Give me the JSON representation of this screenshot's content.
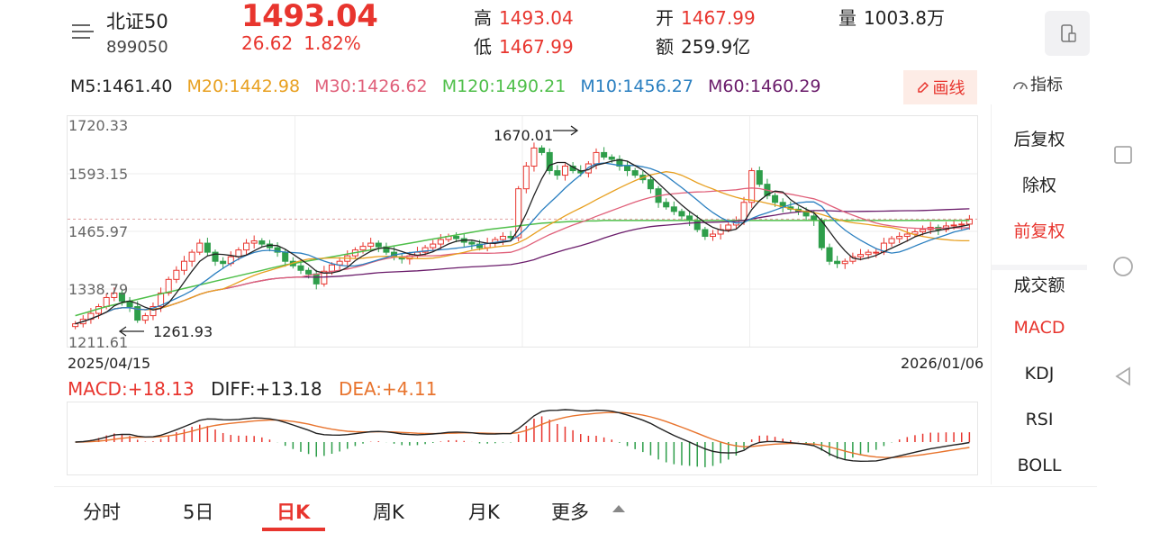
{
  "header": {
    "name": "北证50",
    "code": "899050",
    "price": "1493.04",
    "change": "26.62",
    "change_pct": "1.82%",
    "high_label": "高",
    "high": "1493.04",
    "low_label": "低",
    "low": "1467.99",
    "open_label": "开",
    "open": "1467.99",
    "amount_label": "额",
    "amount": "259.9亿",
    "volume_label": "量",
    "volume": "1003.8万"
  },
  "ma": [
    {
      "label": "M5:1461.40",
      "color": "#222222"
    },
    {
      "label": "M20:1442.98",
      "color": "#e8a020"
    },
    {
      "label": "M30:1426.62",
      "color": "#e0607a"
    },
    {
      "label": "M120:1490.21",
      "color": "#4fbf4a"
    },
    {
      "label": "M10:1456.27",
      "color": "#2a7fc0"
    },
    {
      "label": "M60:1460.29",
      "color": "#6a1b6a"
    }
  ],
  "draw_button": "画线",
  "indicator_button": "指标",
  "side_menu": [
    {
      "label": "后复权",
      "active": false
    },
    {
      "label": "除权",
      "active": false
    },
    {
      "label": "前复权",
      "active": true
    },
    {
      "label": "成交额",
      "active": false
    },
    {
      "label": "MACD",
      "active": true
    },
    {
      "label": "KDJ",
      "active": false
    },
    {
      "label": "RSI",
      "active": false
    },
    {
      "label": "BOLL",
      "active": false
    }
  ],
  "chart_data": [
    {
      "type": "candlestick",
      "y_ticks": [
        "1720.33",
        "1593.15",
        "1465.97",
        "1338.79",
        "1211.61"
      ],
      "ylim": [
        1211.61,
        1720.33
      ],
      "x_start": "2025/04/15",
      "x_end": "2026/01/06",
      "high_marker": "1670.01",
      "low_marker": "1261.93",
      "last_close": 1493.04,
      "close": [
        1262,
        1272,
        1285,
        1300,
        1320,
        1330,
        1312,
        1300,
        1270,
        1280,
        1300,
        1330,
        1360,
        1380,
        1400,
        1420,
        1440,
        1420,
        1400,
        1395,
        1410,
        1425,
        1440,
        1445,
        1438,
        1430,
        1420,
        1400,
        1390,
        1380,
        1372,
        1350,
        1378,
        1392,
        1400,
        1412,
        1425,
        1433,
        1440,
        1432,
        1420,
        1410,
        1405,
        1412,
        1420,
        1430,
        1438,
        1448,
        1455,
        1450,
        1442,
        1438,
        1430,
        1440,
        1448,
        1455,
        1452,
        1560,
        1610,
        1650,
        1640,
        1600,
        1590,
        1610,
        1600,
        1595,
        1615,
        1640,
        1630,
        1625,
        1610,
        1600,
        1590,
        1580,
        1560,
        1530,
        1520,
        1510,
        1500,
        1490,
        1470,
        1455,
        1460,
        1470,
        1480,
        1490,
        1530,
        1600,
        1570,
        1545,
        1530,
        1520,
        1515,
        1510,
        1500,
        1490,
        1430,
        1400,
        1395,
        1400,
        1410,
        1415,
        1420,
        1420,
        1440,
        1450,
        1455,
        1460,
        1465,
        1470,
        1475,
        1470,
        1478,
        1480,
        1482,
        1493
      ],
      "ma120": [
        1280,
        1285,
        1290,
        1295,
        1300,
        1304,
        1308,
        1312,
        1316,
        1320,
        1324,
        1328,
        1332,
        1336,
        1340,
        1344,
        1348,
        1352,
        1356,
        1360,
        1364,
        1368,
        1372,
        1376,
        1380,
        1384,
        1388,
        1392,
        1395,
        1398,
        1401,
        1404,
        1407,
        1410,
        1413,
        1416,
        1419,
        1422,
        1425,
        1428,
        1431,
        1434,
        1437,
        1440,
        1443,
        1446,
        1449,
        1452,
        1455,
        1458,
        1461,
        1464,
        1467,
        1470,
        1472,
        1474,
        1476,
        1478,
        1480,
        1482,
        1484,
        1485,
        1486,
        1487,
        1488,
        1488,
        1489,
        1489,
        1490,
        1490,
        1490,
        1490,
        1490,
        1490,
        1490,
        1490,
        1490,
        1490,
        1490,
        1490,
        1490,
        1490,
        1490,
        1490,
        1490,
        1490,
        1490,
        1490,
        1490,
        1490,
        1490,
        1490,
        1490,
        1490,
        1490,
        1490,
        1490,
        1490,
        1490,
        1490,
        1490,
        1490,
        1490,
        1490,
        1490,
        1490,
        1490,
        1490,
        1490,
        1490,
        1490,
        1490,
        1490,
        1490,
        1490,
        1490
      ]
    },
    {
      "type": "macd",
      "legend": [
        {
          "label": "MACD:+18.13",
          "color": "#e8352e"
        },
        {
          "label": "DIFF:+13.18",
          "color": "#222222"
        },
        {
          "label": "DEA:+4.11",
          "color": "#e8742e"
        }
      ]
    }
  ],
  "tabs": [
    {
      "label": "分时",
      "active": false
    },
    {
      "label": "5日",
      "active": false
    },
    {
      "label": "日K",
      "active": true
    },
    {
      "label": "周K",
      "active": false
    },
    {
      "label": "月K",
      "active": false
    },
    {
      "label": "更多",
      "active": false
    }
  ]
}
